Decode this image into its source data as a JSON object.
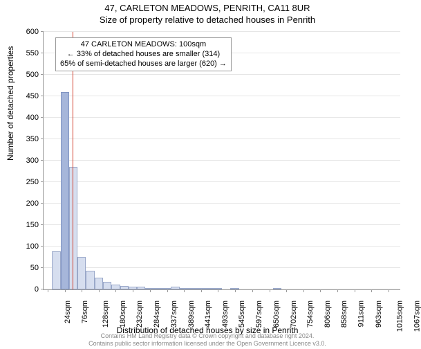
{
  "title_main": "47, CARLETON MEADOWS, PENRITH, CA11 8UR",
  "title_sub": "Size of property relative to detached houses in Penrith",
  "y_axis_label": "Number of detached properties",
  "x_axis_label": "Distribution of detached houses by size in Penrith",
  "attribution_line1": "Contains HM Land Registry data © Crown copyright and database right 2024.",
  "attribution_line2": "Contains public sector information licensed under the Open Government Licence v3.0.",
  "callout": {
    "line1": "47 CARLETON MEADOWS: 100sqm",
    "line2": "← 33% of detached houses are smaller (314)",
    "line3": "65% of semi-detached houses are larger (620) →"
  },
  "chart": {
    "type": "histogram",
    "ylim": [
      0,
      600
    ],
    "ytick_step": 50,
    "yticks": [
      0,
      50,
      100,
      150,
      200,
      250,
      300,
      350,
      400,
      450,
      500,
      550,
      600
    ],
    "grid_color": "#e6e6e6",
    "axis_color": "#999999",
    "bar_fill": "#d6deef",
    "bar_border": "#9aa8c9",
    "highlight_fill": "rgba(78,110,180,0.35)",
    "marker_color": "#d23c2a",
    "background_color": "#ffffff",
    "marker_x_sqm": 100,
    "highlight_bin_sqm": 76,
    "bin_width_sqm": 26,
    "x_start_sqm": 11,
    "values": [
      0,
      88,
      460,
      285,
      76,
      44,
      28,
      17,
      12,
      8,
      6,
      6,
      4,
      3,
      3,
      6,
      2,
      2,
      3,
      1,
      1,
      0,
      2,
      0,
      0,
      0,
      0,
      1,
      0,
      0,
      0,
      0,
      0,
      0,
      0,
      0,
      0,
      0,
      0,
      0,
      0,
      0
    ],
    "xticks_sqm": [
      24,
      76,
      128,
      180,
      232,
      284,
      337,
      389,
      441,
      493,
      545,
      597,
      650,
      702,
      754,
      806,
      858,
      911,
      963,
      1015,
      1067
    ]
  },
  "style": {
    "title_fontsize": 13,
    "axis_label_fontsize": 12,
    "tick_fontsize": 11,
    "callout_fontsize": 11,
    "attribution_fontsize": 9,
    "attribution_color": "#888888"
  }
}
